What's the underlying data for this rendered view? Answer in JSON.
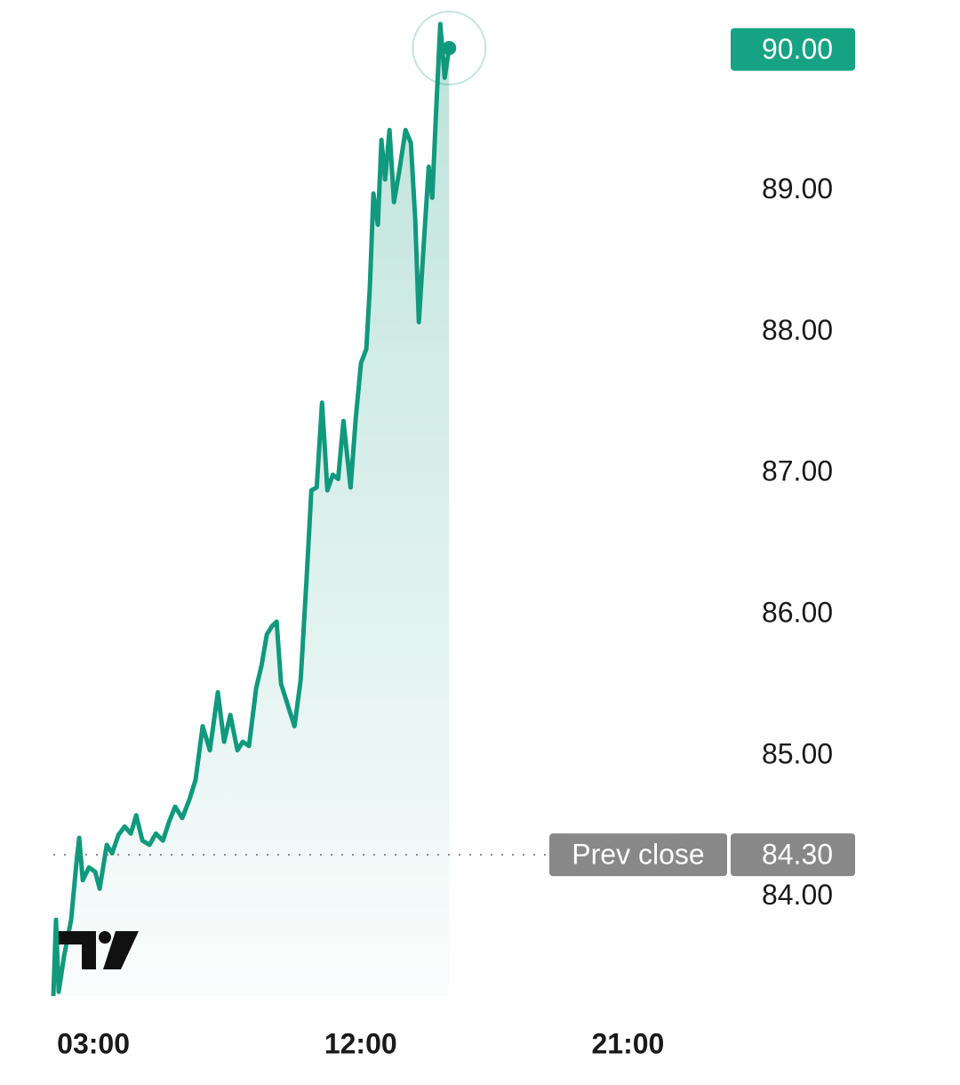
{
  "chart_data": {
    "type": "line",
    "series": [
      {
        "color": "#11997d",
        "x": [
          1.65,
          1.74,
          1.83,
          2.01,
          2.25,
          2.43,
          2.52,
          2.64,
          2.85,
          3.06,
          3.21,
          3.45,
          3.63,
          3.84,
          4.05,
          4.26,
          4.44,
          4.65,
          4.89,
          5.1,
          5.34,
          5.54,
          5.75,
          5.99,
          6.23,
          6.44,
          6.68,
          6.92,
          7.19,
          7.4,
          7.61,
          7.85,
          8.03,
          8.24,
          8.48,
          8.66,
          8.84,
          9.02,
          9.17,
          9.32,
          9.56,
          9.77,
          9.98,
          10.19,
          10.34,
          10.52,
          10.7,
          10.88,
          11.06,
          11.24,
          11.42,
          11.66,
          11.83,
          12.01,
          12.19,
          12.31,
          12.43,
          12.58,
          12.7,
          12.82,
          12.97,
          13.12,
          13.3,
          13.51,
          13.69,
          13.84,
          13.96,
          14.11,
          14.29,
          14.41,
          14.53,
          14.68,
          14.83,
          14.98
        ],
        "values": [
          83.3,
          83.84,
          83.33,
          83.58,
          83.84,
          84.25,
          84.42,
          84.12,
          84.21,
          84.18,
          84.06,
          84.37,
          84.31,
          84.44,
          84.5,
          84.45,
          84.58,
          84.4,
          84.37,
          84.45,
          84.4,
          84.53,
          84.64,
          84.56,
          84.69,
          84.83,
          85.21,
          85.04,
          85.45,
          85.1,
          85.29,
          85.04,
          85.1,
          85.07,
          85.48,
          85.64,
          85.86,
          85.92,
          85.95,
          85.51,
          85.35,
          85.21,
          85.54,
          86.3,
          86.88,
          86.9,
          87.5,
          86.88,
          86.99,
          86.96,
          87.37,
          86.9,
          87.38,
          87.78,
          87.88,
          88.32,
          88.98,
          88.76,
          89.36,
          89.08,
          89.43,
          88.92,
          89.14,
          89.43,
          89.34,
          88.79,
          88.07,
          88.57,
          89.17,
          88.95,
          89.52,
          90.18,
          89.8,
          90.01
        ]
      }
    ],
    "last_price": {
      "value": 90,
      "label": "90.00"
    },
    "prev_close_label": "Prev close",
    "prev_close": {
      "value": 84.3,
      "label": "84.30"
    },
    "xlim": [
      1.65,
      24.4
    ],
    "xticks": [
      {
        "value": 3,
        "label": "03:00"
      },
      {
        "value": 12,
        "label": "12:00"
      },
      {
        "value": 21,
        "label": "21:00"
      }
    ],
    "ylim": [
      83.3,
      90.35
    ],
    "yticks": [
      {
        "value": 84,
        "label": "84.00"
      },
      {
        "value": 85,
        "label": "85.00"
      },
      {
        "value": 86,
        "label": "86.00"
      },
      {
        "value": 87,
        "label": "87.00"
      },
      {
        "value": 88,
        "label": "88.00"
      },
      {
        "value": 89,
        "label": "89.00"
      },
      {
        "value": 90,
        "label": "90.00"
      }
    ],
    "grid": false
  }
}
